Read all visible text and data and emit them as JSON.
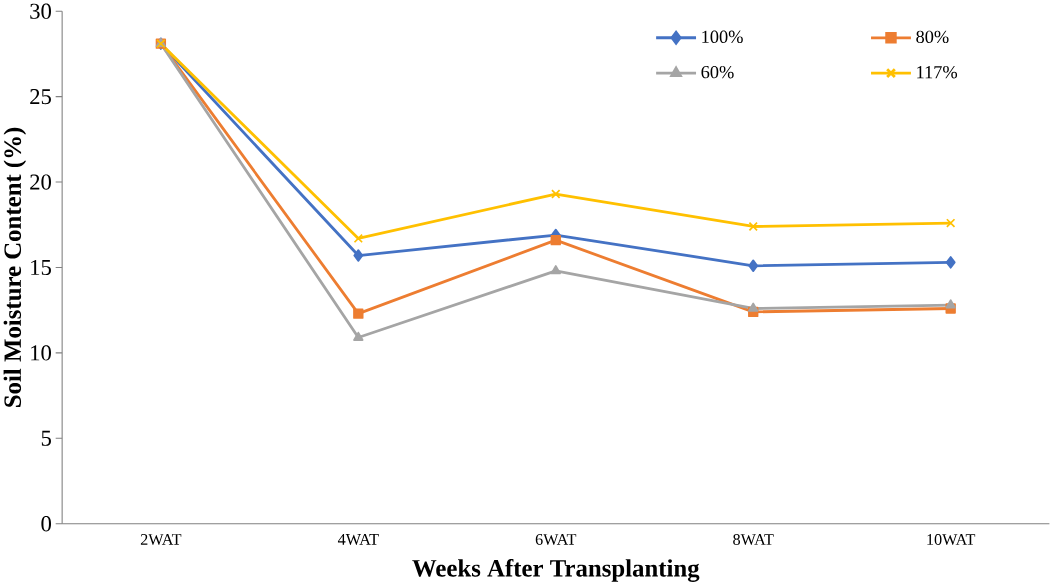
{
  "chart_data": {
    "type": "line",
    "xlabel": "Weeks After Transplanting",
    "ylabel": "Soil Moisture Content (%)",
    "categories": [
      "2WAT",
      "4WAT",
      "6WAT",
      "8WAT",
      "10WAT"
    ],
    "series": [
      {
        "name": "100%",
        "color": "#4472c4",
        "marker": "diamond",
        "values": [
          28.1,
          15.7,
          16.9,
          15.1,
          15.3
        ]
      },
      {
        "name": "80%",
        "color": "#ed7d31",
        "marker": "square",
        "values": [
          28.1,
          12.3,
          16.6,
          12.4,
          12.6
        ]
      },
      {
        "name": "60%",
        "color": "#a5a5a5",
        "marker": "triangle",
        "values": [
          28.1,
          10.9,
          14.8,
          12.6,
          12.8
        ]
      },
      {
        "name": "117%",
        "color": "#ffc000",
        "marker": "cross",
        "values": [
          28.1,
          16.7,
          19.3,
          17.4,
          17.6
        ]
      }
    ],
    "ylim": [
      0,
      30
    ],
    "yticks": [
      0,
      5,
      10,
      15,
      20,
      25,
      30
    ],
    "grid": false,
    "legend": "top right"
  }
}
